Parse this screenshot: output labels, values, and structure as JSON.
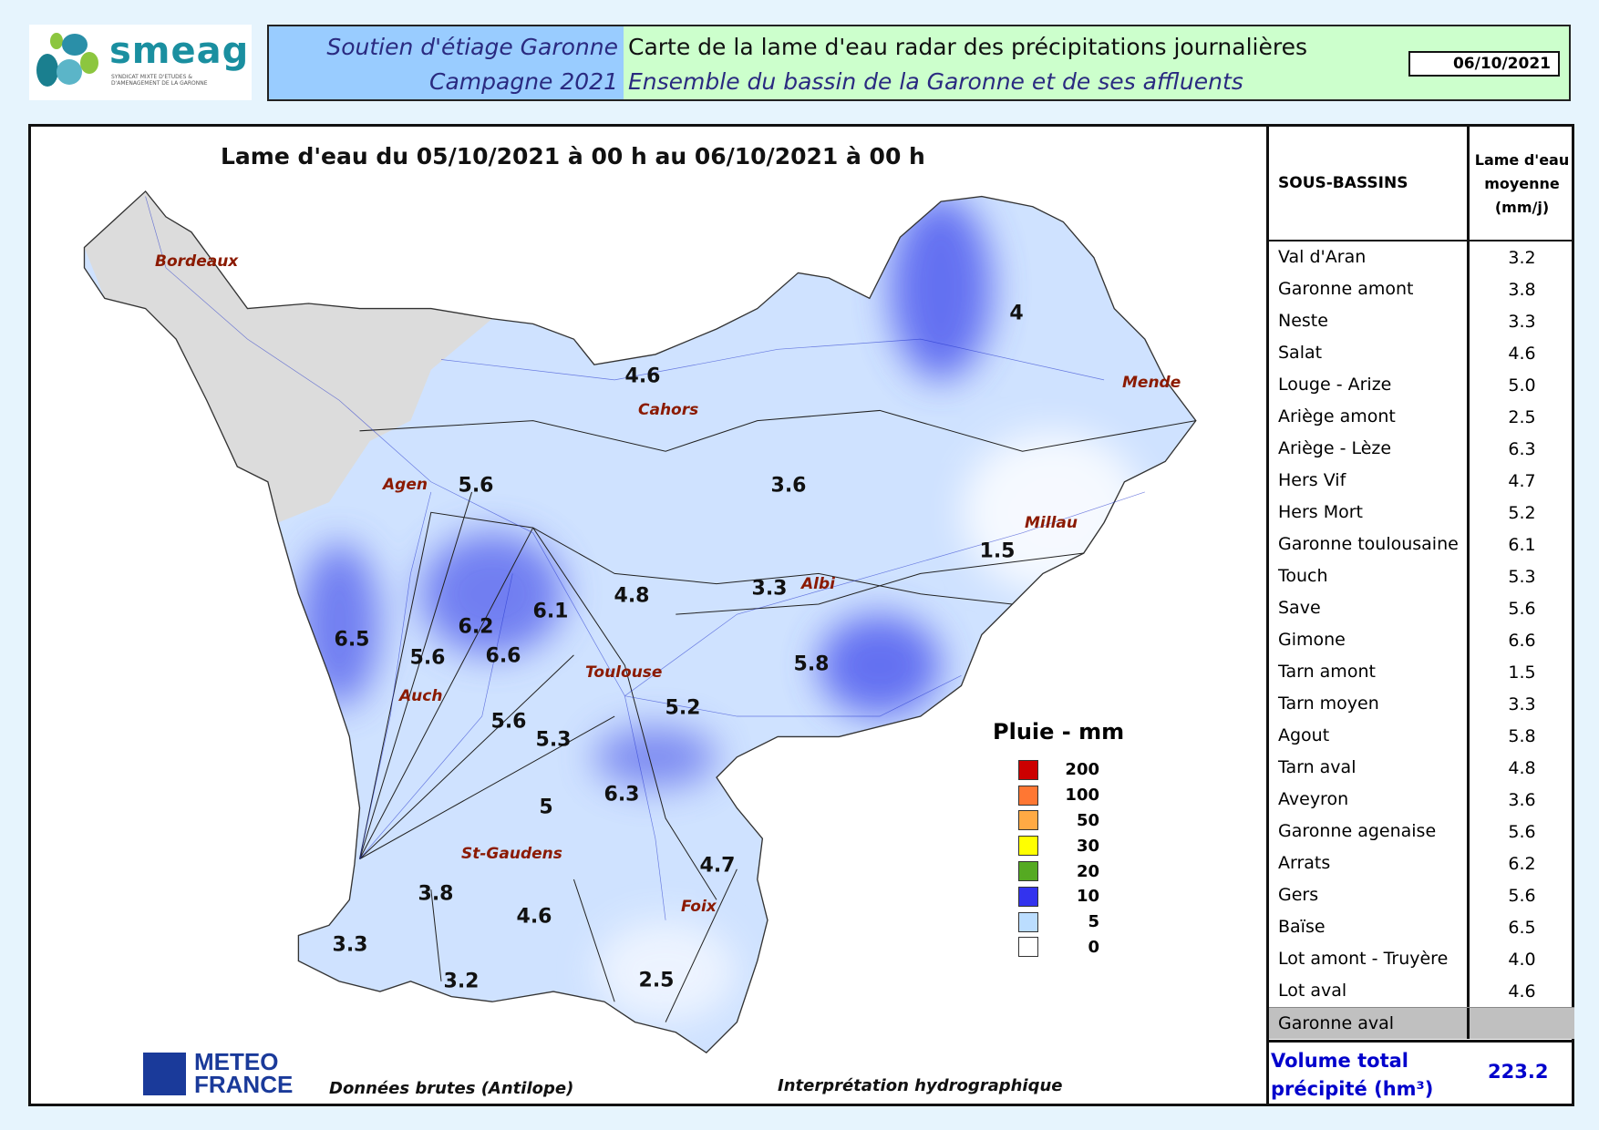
{
  "logo": {
    "brand": "smeag",
    "subtitle": "SYNDICAT MIXTE D'ETUDES & D'AMENAGEMENT DE LA GARONNE"
  },
  "header": {
    "left_line1": "Soutien d'étiage Garonne",
    "left_line2": "Campagne 2021",
    "title": "Carte de la lame d'eau radar des précipitations journalières",
    "subtitle": "Ensemble du bassin de la Garonne et de ses affluents",
    "date": "06/10/2021"
  },
  "map": {
    "title": "Lame d'eau du 05/10/2021 à 00 h au 06/10/2021 à 00 h",
    "cities": [
      "Bordeaux",
      "Cahors",
      "Mende",
      "Agen",
      "Millau",
      "Albi",
      "Toulouse",
      "Auch",
      "St-Gaudens",
      "Foix"
    ],
    "values": [
      "4.6",
      "4",
      "5.6",
      "3.6",
      "1.5",
      "3.3",
      "6.1",
      "4.8",
      "6.2",
      "6.5",
      "5.6",
      "6.6",
      "5.8",
      "5.2",
      "5.6",
      "5.3",
      "5",
      "6.3",
      "4.7",
      "3.8",
      "4.6",
      "3.3",
      "3.2",
      "2.5"
    ],
    "legend": {
      "title": "Pluie - mm",
      "items": [
        {
          "value": "200",
          "color": "#cc0000"
        },
        {
          "value": "100",
          "color": "#ff7733"
        },
        {
          "value": "50",
          "color": "#ffaa44"
        },
        {
          "value": "30",
          "color": "#ffff00"
        },
        {
          "value": "20",
          "color": "#55aa22"
        },
        {
          "value": "10",
          "color": "#3333ee"
        },
        {
          "value": "5",
          "color": "#bbddff"
        },
        {
          "value": "0",
          "color": "#ffffff"
        }
      ]
    },
    "footer_left": "Données brutes (Antilope)",
    "footer_right": "Interprétation hydrographique",
    "meteo_logo": "METEO FRANCE"
  },
  "table": {
    "col1": "SOUS-BASSINS",
    "col2": "Lame d'eau moyenne (mm/j)",
    "rows": [
      {
        "name": "Val d'Aran",
        "value": "3.2"
      },
      {
        "name": "Garonne amont",
        "value": "3.8"
      },
      {
        "name": "Neste",
        "value": "3.3"
      },
      {
        "name": "Salat",
        "value": "4.6"
      },
      {
        "name": "Louge - Arize",
        "value": "5.0"
      },
      {
        "name": "Ariège amont",
        "value": "2.5"
      },
      {
        "name": "Ariège - Lèze",
        "value": "6.3"
      },
      {
        "name": "Hers Vif",
        "value": "4.7"
      },
      {
        "name": "Hers Mort",
        "value": "5.2"
      },
      {
        "name": "Garonne toulousaine",
        "value": "6.1"
      },
      {
        "name": "Touch",
        "value": "5.3"
      },
      {
        "name": "Save",
        "value": "5.6"
      },
      {
        "name": "Gimone",
        "value": "6.6"
      },
      {
        "name": "Tarn amont",
        "value": "1.5"
      },
      {
        "name": "Tarn moyen",
        "value": "3.3"
      },
      {
        "name": "Agout",
        "value": "5.8"
      },
      {
        "name": "Tarn aval",
        "value": "4.8"
      },
      {
        "name": "Aveyron",
        "value": "3.6"
      },
      {
        "name": "Garonne agenaise",
        "value": "5.6"
      },
      {
        "name": "Arrats",
        "value": "6.2"
      },
      {
        "name": "Gers",
        "value": "5.6"
      },
      {
        "name": "Baïse",
        "value": "6.5"
      },
      {
        "name": "Lot amont - Truyère",
        "value": "4.0"
      },
      {
        "name": "Lot aval",
        "value": "4.6"
      },
      {
        "name": "Garonne aval",
        "value": ""
      }
    ],
    "total_label": "Volume total précipité (hm³)",
    "total_value": "223.2"
  }
}
